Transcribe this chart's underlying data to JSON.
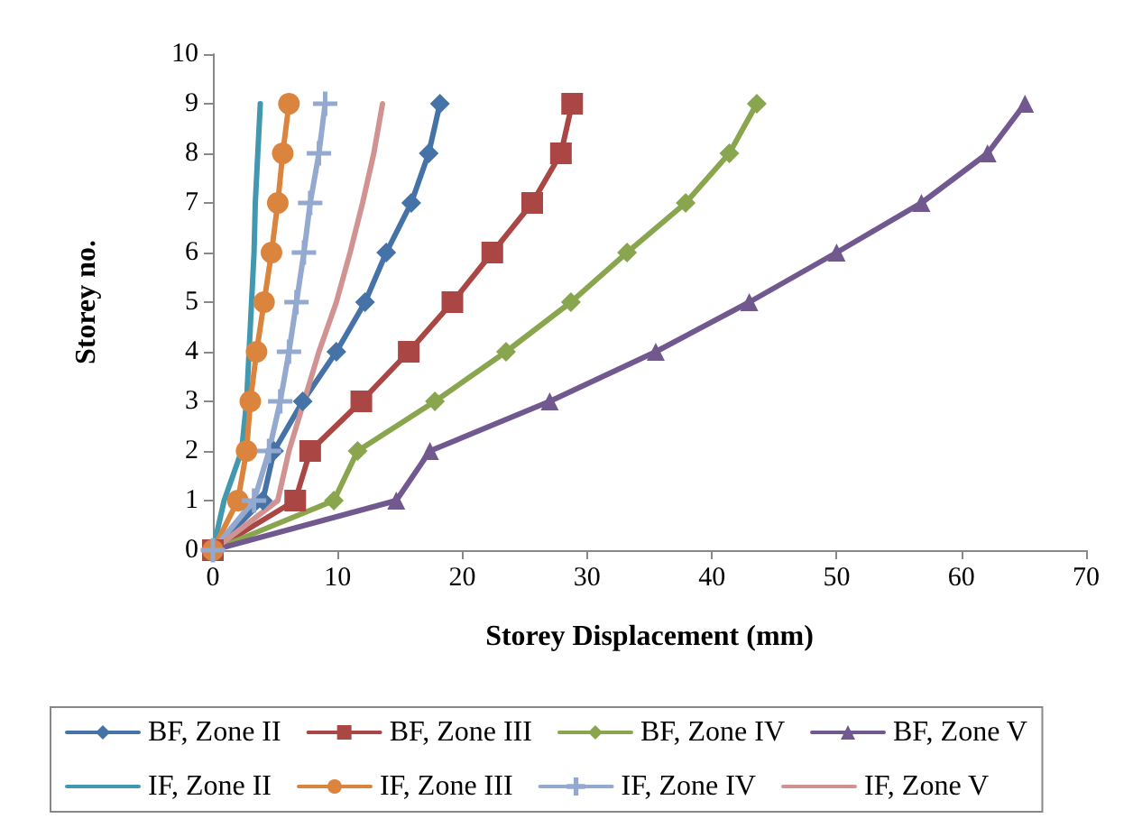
{
  "chart_data": {
    "type": "line",
    "xlabel": "Storey Displacement (mm)",
    "ylabel": "Storey no.",
    "xlim": [
      0,
      70
    ],
    "xticks": [
      0,
      10,
      20,
      30,
      40,
      50,
      60,
      70
    ],
    "ylim": [
      0,
      10
    ],
    "yticks": [
      0,
      1,
      2,
      3,
      4,
      5,
      6,
      7,
      8,
      9,
      10
    ],
    "grid": false,
    "legend": "bottom",
    "line_style": "solid",
    "series": [
      {
        "name": "BF, Zone II",
        "color": "#4572a7",
        "marker": "diamond",
        "x": [
          0,
          4.0,
          4.9,
          7.2,
          9.9,
          12.2,
          13.9,
          15.9,
          17.3,
          18.2
        ],
        "values": [
          0,
          1,
          2,
          3,
          4,
          5,
          6,
          7,
          8,
          9
        ]
      },
      {
        "name": "BF, Zone III",
        "color": "#aa4643",
        "marker": "square",
        "x": [
          0,
          6.6,
          7.8,
          11.9,
          15.7,
          19.2,
          22.4,
          25.6,
          27.9,
          28.8
        ],
        "values": [
          0,
          1,
          2,
          3,
          4,
          5,
          6,
          7,
          8,
          9
        ]
      },
      {
        "name": "BF, Zone IV",
        "color": "#89a54e",
        "marker": "diamond",
        "x": [
          0,
          9.7,
          11.6,
          17.8,
          23.5,
          28.7,
          33.2,
          37.9,
          41.4,
          43.6
        ],
        "values": [
          0,
          1,
          2,
          3,
          4,
          5,
          6,
          7,
          8,
          9
        ]
      },
      {
        "name": "BF, Zone V",
        "color": "#71588f",
        "marker": "triangle",
        "x": [
          0,
          14.7,
          17.4,
          27.0,
          35.5,
          43.0,
          50.0,
          56.8,
          62.1,
          65.1
        ],
        "values": [
          0,
          1,
          2,
          3,
          4,
          5,
          6,
          7,
          8,
          9
        ]
      },
      {
        "name": "IF, Zone II",
        "color": "#4198af",
        "marker": "none",
        "x": [
          0,
          0.9,
          2.3,
          2.7,
          2.9,
          3.1,
          3.3,
          3.4,
          3.6,
          3.8
        ],
        "values": [
          0,
          1,
          2,
          3,
          4,
          5,
          6,
          7,
          8,
          9
        ]
      },
      {
        "name": "IF, Zone III",
        "color": "#db843d",
        "marker": "circle",
        "x": [
          0,
          2.0,
          2.7,
          3.0,
          3.5,
          4.1,
          4.7,
          5.2,
          5.6,
          6.1
        ],
        "values": [
          0,
          1,
          2,
          3,
          4,
          5,
          6,
          7,
          8,
          9
        ]
      },
      {
        "name": "IF, Zone IV",
        "color": "#93a9cf",
        "marker": "cross",
        "x": [
          0,
          3.3,
          4.5,
          5.4,
          6.1,
          6.7,
          7.3,
          7.8,
          8.5,
          9.0
        ],
        "values": [
          0,
          1,
          2,
          3,
          4,
          5,
          6,
          7,
          8,
          9
        ]
      },
      {
        "name": "IF, Zone V",
        "color": "#d19392",
        "marker": "none",
        "x": [
          0,
          5.2,
          6.1,
          7.3,
          8.5,
          9.9,
          11.0,
          12.0,
          12.9,
          13.6
        ],
        "values": [
          0,
          1,
          2,
          3,
          4,
          5,
          6,
          7,
          8,
          9
        ]
      }
    ]
  }
}
